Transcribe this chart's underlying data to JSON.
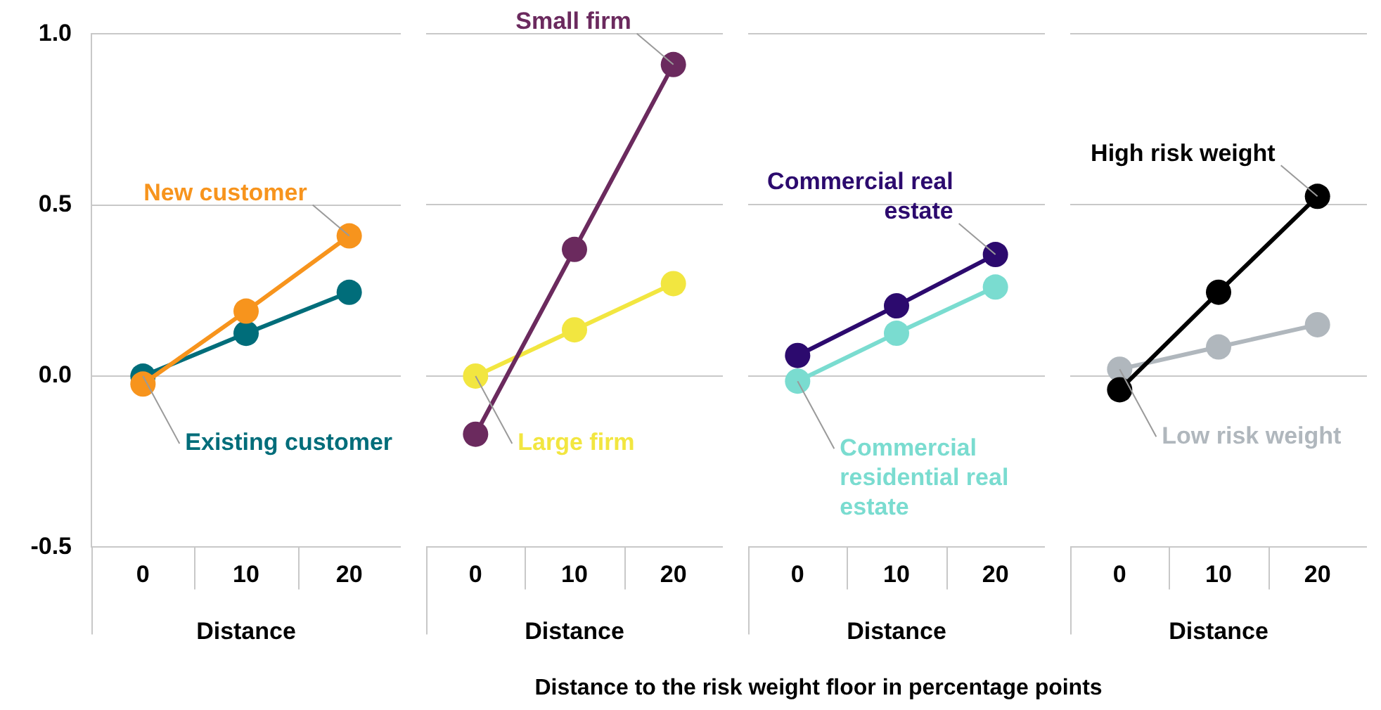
{
  "chart_data": [
    {
      "type": "line",
      "categories": [
        "0",
        "10",
        "20"
      ],
      "xlabel": "Distance",
      "ylim": [
        -0.5,
        1
      ],
      "yticks": [
        {
          "value": -0.5,
          "label": "-0.5"
        },
        {
          "value": 0,
          "label": "0.0"
        },
        {
          "value": 0.5,
          "label": "0.5"
        },
        {
          "value": 1,
          "label": "1.0"
        }
      ],
      "grid": "y",
      "legend": false,
      "marker": "circle",
      "annotations": [
        "Distance to the risk weight floor in percentage points"
      ],
      "series": [
        {
          "name": "New customer",
          "color": "#f7941d",
          "values": [
            -0.023,
            0.19,
            0.41
          ]
        },
        {
          "name": "Existing customer",
          "color": "#006d7a",
          "values": [
            0.0,
            0.125,
            0.245
          ]
        }
      ]
    },
    {
      "type": "line",
      "categories": [
        "0",
        "10",
        "20"
      ],
      "xlabel": "Distance",
      "ylim": [
        -0.5,
        1
      ],
      "yticks": [
        -0.5,
        0,
        0.5,
        1
      ],
      "grid": "y",
      "legend": false,
      "marker": "circle",
      "tick_labels": "x",
      "series": [
        {
          "name": "Small firm",
          "color": "#6b2a5e",
          "values": [
            -0.17,
            0.37,
            0.91
          ]
        },
        {
          "name": "Large firm",
          "color": "#f2e640",
          "values": [
            0.0,
            0.135,
            0.27
          ]
        }
      ]
    },
    {
      "type": "line",
      "categories": [
        "0",
        "10",
        "20"
      ],
      "xlabel": "Distance",
      "ylim": [
        -0.5,
        1
      ],
      "yticks": [
        -0.5,
        0,
        0.5,
        1
      ],
      "grid": "y",
      "legend": false,
      "marker": "circle",
      "tick_labels": "x",
      "series": [
        {
          "name": "Commercial real estate",
          "color": "#2c0a6e",
          "values": [
            0.06,
            0.205,
            0.355
          ]
        },
        {
          "name": "Commercial residential real estate",
          "color": "#7adcd0",
          "values": [
            -0.015,
            0.125,
            0.26
          ]
        }
      ]
    },
    {
      "type": "line",
      "categories": [
        "0",
        "10",
        "20"
      ],
      "xlabel": "Distance",
      "ylim": [
        -0.5,
        1
      ],
      "yticks": [
        -0.5,
        0,
        0.5,
        1
      ],
      "grid": "y",
      "legend": false,
      "marker": "circle",
      "tick_labels": "x",
      "series": [
        {
          "name": "High risk weight",
          "color": "#000000",
          "values": [
            -0.04,
            0.245,
            0.525
          ]
        },
        {
          "name": "Low risk weight",
          "color": "#b0b7bd",
          "values": [
            0.02,
            0.085,
            0.15
          ]
        }
      ]
    }
  ]
}
